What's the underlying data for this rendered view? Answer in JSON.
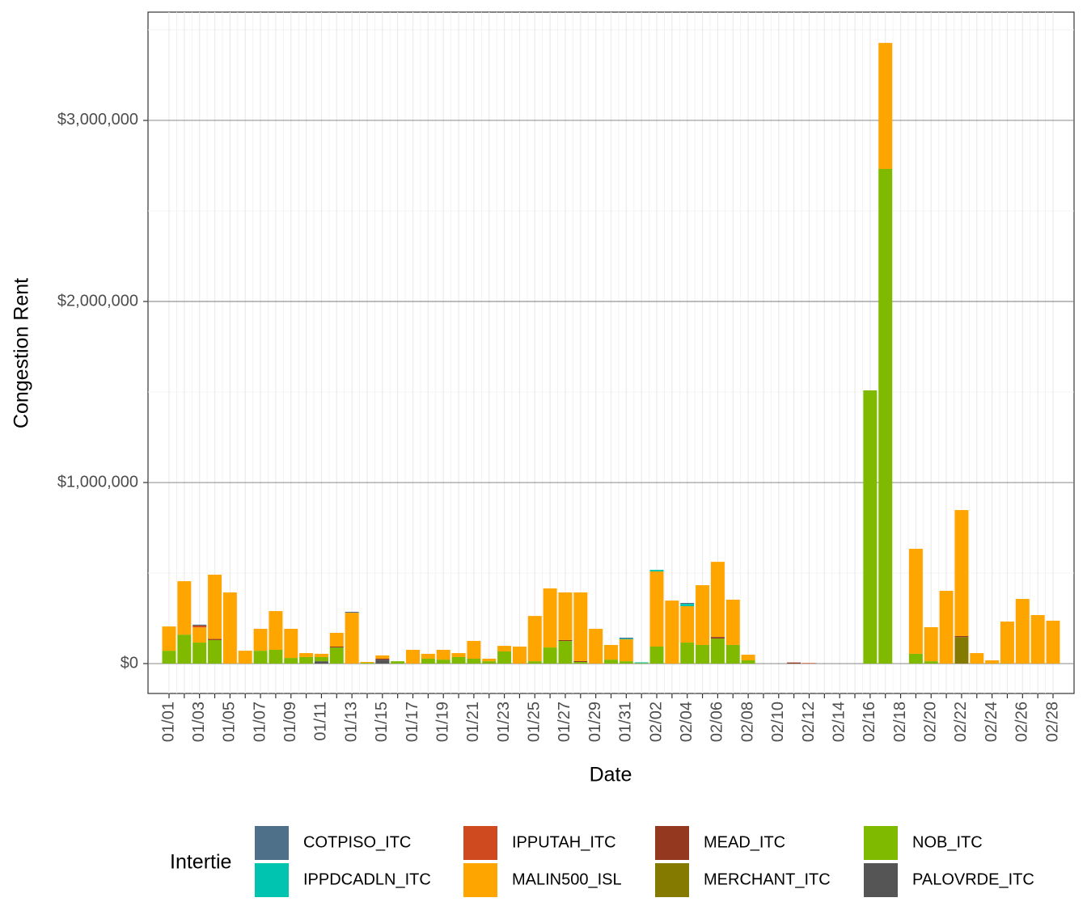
{
  "chart_data": {
    "type": "bar",
    "stacked": true,
    "x_label": "Date",
    "y_label": "Congestion Rent",
    "legend_title": "Intertie",
    "legend_position": "bottom",
    "grid": true,
    "categories": [
      "01/01",
      null,
      "01/03",
      null,
      "01/05",
      null,
      "01/07",
      null,
      "01/09",
      null,
      "01/11",
      null,
      "01/13",
      null,
      "01/15",
      null,
      "01/17",
      null,
      "01/19",
      null,
      "01/21",
      null,
      "01/23",
      null,
      "01/25",
      null,
      "01/27",
      null,
      "01/29",
      null,
      "01/31",
      null,
      "02/02",
      null,
      "02/04",
      null,
      "02/06",
      null,
      "02/08",
      null,
      "02/10",
      null,
      "02/12",
      null,
      "02/14",
      null,
      "02/16",
      null,
      "02/18",
      null,
      "02/20",
      null,
      "02/22",
      null,
      "02/24",
      null,
      "02/26",
      null,
      "02/28"
    ],
    "ylim": [
      -165000,
      3598000
    ],
    "yticks": [
      {
        "value": 0,
        "label": "$0"
      },
      {
        "value": 1000000,
        "label": "$1,000,000"
      },
      {
        "value": 2000000,
        "label": "$2,000,000"
      },
      {
        "value": 3000000,
        "label": "$3,000,000"
      }
    ],
    "series": [
      {
        "name": "COTPISO_ITC",
        "color": "#4e7189",
        "values": [
          0,
          0,
          5000,
          0,
          0,
          0,
          0,
          0,
          0,
          0,
          0,
          0,
          5000,
          0,
          0,
          0,
          0,
          0,
          0,
          0,
          0,
          0,
          0,
          0,
          0,
          0,
          0,
          0,
          0,
          0,
          5000,
          0,
          0,
          0,
          5000,
          0,
          0,
          0,
          0,
          0,
          0,
          0,
          0,
          0,
          0,
          0,
          0,
          0,
          0,
          0,
          0,
          0,
          0,
          0,
          0,
          0,
          0,
          0,
          0
        ]
      },
      {
        "name": "IPPDCADLN_ITC",
        "color": "#00c4b0",
        "values": [
          0,
          0,
          0,
          0,
          0,
          0,
          0,
          0,
          0,
          0,
          0,
          0,
          0,
          0,
          0,
          0,
          0,
          0,
          0,
          0,
          0,
          0,
          0,
          0,
          0,
          0,
          0,
          0,
          0,
          0,
          4000,
          4000,
          9000,
          0,
          13000,
          0,
          0,
          0,
          0,
          0,
          0,
          0,
          0,
          0,
          0,
          0,
          0,
          0,
          0,
          0,
          0,
          0,
          0,
          0,
          0,
          0,
          0,
          0,
          0
        ]
      },
      {
        "name": "IPPUTAH_ITC",
        "color": "#d04a20",
        "values": [
          0,
          0,
          10000,
          0,
          0,
          0,
          0,
          0,
          0,
          0,
          0,
          0,
          0,
          0,
          0,
          0,
          0,
          0,
          0,
          0,
          0,
          0,
          0,
          0,
          0,
          0,
          0,
          0,
          0,
          0,
          0,
          0,
          0,
          0,
          0,
          0,
          0,
          0,
          0,
          0,
          0,
          0,
          3000,
          0,
          0,
          0,
          0,
          0,
          0,
          0,
          0,
          0,
          0,
          0,
          0,
          0,
          0,
          0,
          0
        ]
      },
      {
        "name": "MALIN500_ISL",
        "color": "#ffa500",
        "values": [
          134000,
          295000,
          84000,
          355000,
          393000,
          71000,
          121000,
          214000,
          161000,
          22000,
          18000,
          76000,
          281000,
          5000,
          18000,
          0,
          76000,
          27000,
          54000,
          22000,
          98000,
          14000,
          31000,
          94000,
          250000,
          326000,
          263000,
          379000,
          192000,
          81000,
          121000,
          0,
          415000,
          348000,
          201000,
          330000,
          415000,
          250000,
          31000,
          0,
          0,
          0,
          0,
          0,
          0,
          0,
          0,
          696000,
          0,
          580000,
          188000,
          402000,
          696000,
          58000,
          18000,
          232000,
          357000,
          268000,
          237000
        ]
      },
      {
        "name": "MEAD_ITC",
        "color": "#943820",
        "values": [
          0,
          0,
          0,
          6000,
          0,
          0,
          0,
          0,
          0,
          0,
          0,
          5000,
          0,
          0,
          5000,
          0,
          0,
          0,
          0,
          0,
          0,
          0,
          0,
          0,
          0,
          0,
          5000,
          5000,
          0,
          0,
          0,
          0,
          0,
          0,
          0,
          0,
          9000,
          0,
          0,
          0,
          0,
          6000,
          0,
          0,
          0,
          0,
          0,
          0,
          0,
          0,
          0,
          0,
          5000,
          0,
          0,
          0,
          0,
          0,
          0
        ]
      },
      {
        "name": "MERCHANT_ITC",
        "color": "#857a00",
        "values": [
          0,
          0,
          0,
          0,
          0,
          0,
          0,
          0,
          0,
          0,
          0,
          0,
          0,
          0,
          0,
          0,
          0,
          0,
          0,
          0,
          0,
          0,
          0,
          0,
          0,
          0,
          0,
          0,
          0,
          0,
          0,
          0,
          0,
          0,
          0,
          0,
          0,
          0,
          0,
          0,
          0,
          0,
          0,
          0,
          0,
          0,
          0,
          0,
          0,
          0,
          0,
          0,
          147000,
          0,
          0,
          0,
          0,
          0,
          0
        ]
      },
      {
        "name": "NOB_ITC",
        "color": "#7fba00",
        "values": [
          71000,
          160000,
          116000,
          130000,
          0,
          0,
          71000,
          76000,
          31000,
          36000,
          23000,
          89000,
          0,
          4000,
          0,
          13000,
          0,
          27000,
          22000,
          36000,
          27000,
          13000,
          67000,
          0,
          13000,
          89000,
          125000,
          9000,
          0,
          22000,
          13000,
          3000,
          94000,
          0,
          116000,
          103000,
          138000,
          103000,
          18000,
          0,
          0,
          0,
          0,
          0,
          0,
          0,
          1509000,
          2732000,
          0,
          54000,
          13000,
          0,
          0,
          0,
          0,
          0,
          0,
          0,
          0
        ]
      },
      {
        "name": "PALOVRDE_ITC",
        "color": "#555555",
        "values": [
          0,
          0,
          0,
          0,
          0,
          0,
          0,
          0,
          0,
          0,
          13000,
          0,
          0,
          0,
          22000,
          0,
          0,
          0,
          0,
          0,
          0,
          0,
          0,
          0,
          0,
          0,
          0,
          0,
          0,
          0,
          0,
          0,
          0,
          0,
          0,
          0,
          0,
          0,
          0,
          0,
          0,
          0,
          0,
          0,
          0,
          0,
          0,
          0,
          0,
          0,
          0,
          0,
          0,
          0,
          0,
          0,
          0,
          0,
          0
        ]
      }
    ]
  }
}
